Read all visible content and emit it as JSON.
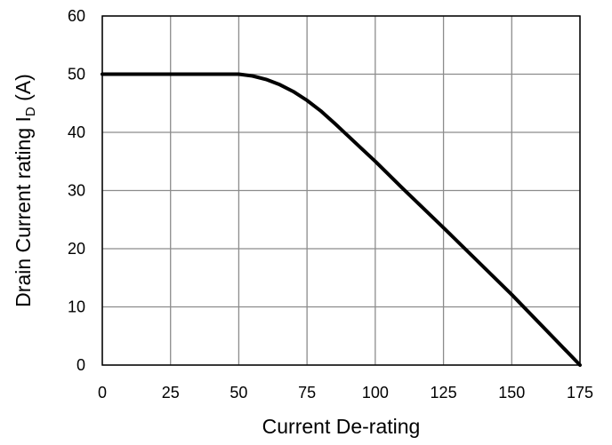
{
  "chart_data": {
    "type": "line",
    "title": "",
    "xlabel": "Current De-rating",
    "ylabel": {
      "main": "Drain Current rating I",
      "subscript": "D",
      "suffix": " (A)"
    },
    "xlim": [
      0,
      175
    ],
    "ylim": [
      0,
      60
    ],
    "xticks": [
      0,
      25,
      50,
      75,
      100,
      125,
      150,
      175
    ],
    "yticks": [
      0,
      10,
      20,
      30,
      40,
      50,
      60
    ],
    "grid": true,
    "legend": "none",
    "series": [
      {
        "color": "#000000",
        "x": [
          0,
          50,
          55,
          60,
          65,
          70,
          75,
          80,
          85,
          90,
          95,
          100,
          110,
          125,
          150,
          175
        ],
        "y": [
          50,
          50,
          49.7,
          49.1,
          48.2,
          47,
          45.5,
          43.7,
          41.6,
          39.4,
          37.2,
          35,
          30.4,
          23.6,
          12.1,
          0
        ]
      }
    ]
  }
}
